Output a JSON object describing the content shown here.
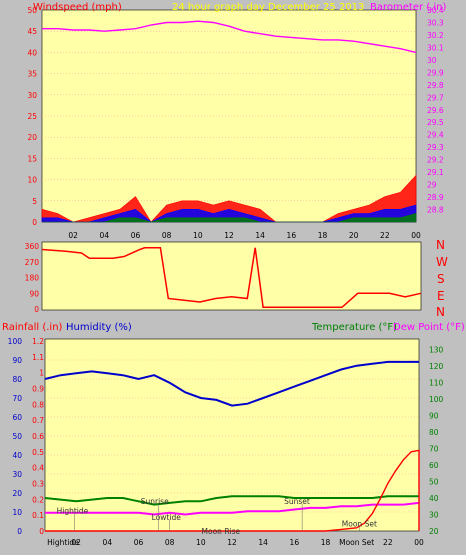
{
  "header": {
    "left_label": "Windspeed (mph)",
    "center_label": "24 hour graph day   December 25 2013",
    "right_label": "Barometer (.in)"
  },
  "colors": {
    "background": "#c0c0c0",
    "plot_bg": "#ffffa8",
    "wind_red": "#ff0000",
    "wind_blue": "#0000ff",
    "wind_green": "#008000",
    "barometer": "#ff00ff",
    "humidity": "#0000cc",
    "temperature": "#008000",
    "dewpoint": "#ff00ff",
    "rainfall": "#ff0000",
    "grid": "#ff9999"
  },
  "compass": [
    "N",
    "W",
    "S",
    "E",
    "N"
  ],
  "bottom_header": {
    "rain_label": "Rainfall (.in)",
    "humidity_label": "Humidity (%)",
    "temperature_label": "Temperature (°F)",
    "dewpoint_label": "Dew Point (°F)"
  },
  "annotations": [
    {
      "text": "Hightide",
      "hour": 1.9,
      "level": 0.09
    },
    {
      "text": "Sunrise",
      "hour": 7.3,
      "level": 0.15
    },
    {
      "text": "Lowtide",
      "hour": 8.0,
      "level": 0.05
    },
    {
      "text": "Moon Rise",
      "hour": 11.2,
      "level": -0.04
    },
    {
      "text": "Sunset",
      "hour": 16.5,
      "level": 0.15
    },
    {
      "text": "Moon Set",
      "hour": 20.2,
      "level": 0.01
    }
  ],
  "bottom_x_labels": [
    "Hightide",
    "02",
    "04",
    "06",
    "08",
    "10",
    "12",
    "14",
    "16",
    "18",
    "Moon Set",
    "22",
    "00"
  ],
  "chart_data": [
    {
      "type": "line",
      "name": "wind-barometer",
      "title": "24 hour graph day   December 25 2013",
      "xlabel": "",
      "ylabel": "Windspeed (mph)",
      "y2label": "Barometer (.in)",
      "x_ticks": [
        "02",
        "04",
        "06",
        "08",
        "10",
        "12",
        "14",
        "16",
        "18",
        "20",
        "22",
        "00"
      ],
      "ylim": [
        0,
        50
      ],
      "y_ticks": [
        0,
        5,
        10,
        15,
        20,
        25,
        30,
        35,
        40,
        45,
        50
      ],
      "y2lim": [
        28.7,
        30.4
      ],
      "y2_ticks": [
        "28.8",
        "28.9",
        "29",
        "29.1",
        "29.2",
        "29.3",
        "29.4",
        "29.5",
        "29.6",
        "29.7",
        "29.8",
        "29.9",
        "30",
        "30.1",
        "30.2",
        "30.3",
        "30.4"
      ],
      "barometer": {
        "x": [
          0,
          1,
          2,
          3,
          4,
          5,
          6,
          7,
          8,
          9,
          10,
          11,
          12,
          13,
          14,
          15,
          16,
          17,
          18,
          19,
          20,
          21,
          22,
          23,
          24
        ],
        "y": [
          30.25,
          30.25,
          30.24,
          30.24,
          30.23,
          30.24,
          30.25,
          30.28,
          30.3,
          30.3,
          30.31,
          30.3,
          30.27,
          30.23,
          30.21,
          30.19,
          30.18,
          30.17,
          30.16,
          30.16,
          30.15,
          30.13,
          30.11,
          30.09,
          30.06
        ]
      },
      "wind_gust": {
        "x": [
          0,
          1,
          2,
          3,
          4,
          5,
          6,
          7,
          8,
          9,
          10,
          11,
          12,
          13,
          14,
          15,
          16,
          17,
          18,
          19,
          20,
          21,
          22,
          23,
          24
        ],
        "y": [
          3,
          2,
          0,
          1,
          2,
          3,
          6,
          0,
          4,
          5,
          5,
          4,
          5,
          4,
          3,
          0,
          0,
          0,
          0,
          2,
          3,
          4,
          6,
          7,
          11
        ]
      },
      "wind_avg": {
        "x": [
          0,
          1,
          2,
          3,
          4,
          5,
          6,
          7,
          8,
          9,
          10,
          11,
          12,
          13,
          14,
          15,
          16,
          17,
          18,
          19,
          20,
          21,
          22,
          23,
          24
        ],
        "y": [
          1,
          1,
          0,
          0,
          1,
          2,
          3,
          0,
          2,
          3,
          3,
          2,
          3,
          2,
          1,
          0,
          0,
          0,
          0,
          1,
          2,
          2,
          3,
          3,
          4
        ]
      },
      "wind_min": {
        "x": [
          0,
          1,
          2,
          3,
          4,
          5,
          6,
          7,
          8,
          9,
          10,
          11,
          12,
          13,
          14,
          15,
          16,
          17,
          18,
          19,
          20,
          21,
          22,
          23,
          24
        ],
        "y": [
          0,
          0,
          0,
          0,
          0,
          1,
          1,
          0,
          1,
          1,
          1,
          1,
          1,
          1,
          0,
          0,
          0,
          0,
          0,
          0,
          1,
          1,
          1,
          1,
          2
        ]
      }
    },
    {
      "type": "line",
      "name": "wind-direction",
      "ylim": [
        0,
        360
      ],
      "y_ticks": [
        0,
        90,
        180,
        270,
        360
      ],
      "series": [
        {
          "x": [
            0,
            1.5,
            2.5,
            3.0,
            4.0,
            4.5,
            5.2,
            6.2,
            6.5,
            7.0,
            7.5,
            8.0,
            9.0,
            10.0,
            11.0,
            12.0,
            13.0,
            13.5,
            14.0,
            15.0,
            16.0,
            17.0,
            18.0,
            19.0,
            20.0,
            21.0,
            22.0,
            23.0,
            24.0
          ],
          "y": [
            340,
            330,
            320,
            290,
            290,
            290,
            300,
            340,
            350,
            350,
            350,
            60,
            50,
            40,
            60,
            70,
            60,
            350,
            10,
            10,
            10,
            10,
            10,
            10,
            90,
            90,
            90,
            70,
            90
          ]
        }
      ]
    },
    {
      "type": "line",
      "name": "humidity-temperature-rain",
      "ylim": [
        0,
        100
      ],
      "y_ticks": [
        0,
        10,
        20,
        30,
        40,
        50,
        60,
        70,
        80,
        90,
        100
      ],
      "rain_ylim": [
        0,
        1.2
      ],
      "rain_ticks": [
        "0",
        "0.1",
        "0.2",
        "0.3",
        "0.4",
        "0.5",
        "0.6",
        "0.7",
        "0.8",
        "0.9",
        "1",
        "1.1",
        "1.2"
      ],
      "temp_ylim": [
        20,
        135
      ],
      "temp_ticks": [
        20,
        30,
        40,
        50,
        60,
        70,
        80,
        90,
        100,
        110,
        120,
        130
      ],
      "series": [
        {
          "name": "Humidity (%)",
          "x": [
            0,
            1,
            2,
            3,
            4,
            5,
            6,
            7,
            8,
            9,
            10,
            11,
            12,
            13,
            14,
            15,
            16,
            17,
            18,
            19,
            20,
            21,
            22,
            23,
            24
          ],
          "y": [
            80,
            82,
            83,
            84,
            83,
            82,
            80,
            82,
            78,
            73,
            70,
            69,
            66,
            67,
            70,
            73,
            76,
            79,
            82,
            85,
            87,
            88,
            89,
            89,
            89
          ]
        },
        {
          "name": "Temperature (°F)",
          "x": [
            0,
            1,
            2,
            3,
            4,
            5,
            6,
            7,
            8,
            9,
            10,
            11,
            12,
            13,
            14,
            15,
            16,
            17,
            18,
            19,
            20,
            21,
            22,
            23,
            24
          ],
          "y": [
            40,
            39,
            38,
            39,
            40,
            40,
            38,
            36,
            37,
            38,
            38,
            40,
            41,
            41,
            41,
            41,
            40,
            40,
            40,
            40,
            40,
            40,
            41,
            41,
            41
          ]
        },
        {
          "name": "Dew Point (°F)",
          "x": [
            0,
            1,
            2,
            3,
            4,
            5,
            6,
            7,
            8,
            9,
            10,
            11,
            12,
            13,
            14,
            15,
            16,
            17,
            18,
            19,
            20,
            21,
            22,
            23,
            24
          ],
          "y": [
            31,
            31,
            31,
            31,
            31,
            31,
            31,
            30,
            31,
            30,
            31,
            31,
            31,
            32,
            32,
            32,
            33,
            34,
            34,
            35,
            35,
            36,
            36,
            36,
            37
          ]
        },
        {
          "name": "Rainfall (.in)",
          "x": [
            0,
            17,
            18,
            19,
            20,
            20.5,
            21,
            21.5,
            22,
            22.5,
            23,
            23.5,
            24,
            24
          ],
          "y": [
            0,
            0,
            0.0,
            0.01,
            0.02,
            0.05,
            0.11,
            0.2,
            0.3,
            0.38,
            0.45,
            0.5,
            0.51,
            0
          ]
        }
      ]
    }
  ]
}
